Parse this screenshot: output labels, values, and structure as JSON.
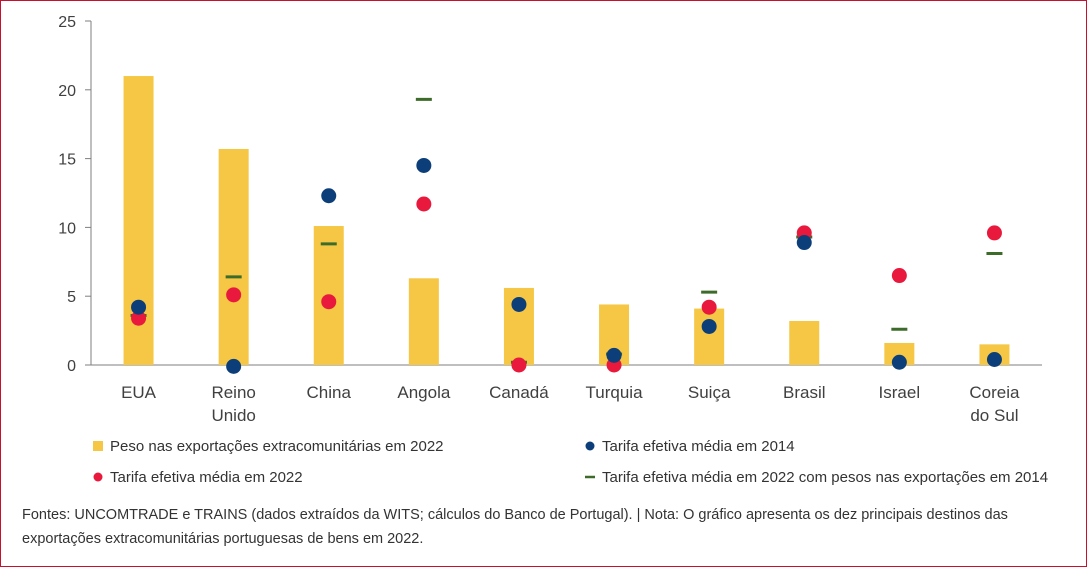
{
  "chart_data": {
    "type": "bar",
    "title": "",
    "xlabel": "",
    "ylabel": "",
    "ylim": [
      0,
      25
    ],
    "yticks": [
      0,
      5,
      10,
      15,
      20,
      25
    ],
    "grid": false,
    "legend_placement": "bottom",
    "categories": [
      [
        "EUA"
      ],
      [
        "Reino",
        "Unido"
      ],
      [
        "China"
      ],
      [
        "Angola"
      ],
      [
        "Canadá"
      ],
      [
        "Turquia"
      ],
      [
        "Suiça"
      ],
      [
        "Brasil"
      ],
      [
        "Israel"
      ],
      [
        "Coreia",
        "do Sul"
      ]
    ],
    "series": [
      {
        "name": "Peso nas exportações extracomunitárias em 2022",
        "kind": "bar",
        "color": "#f5c744",
        "values": [
          21.0,
          15.7,
          10.1,
          6.3,
          5.6,
          4.4,
          4.1,
          3.2,
          1.6,
          1.5
        ]
      },
      {
        "name": "Tarifa efetiva média em 2014",
        "kind": "dot",
        "color": "#0c3f7a",
        "values": [
          4.2,
          -0.1,
          12.3,
          14.5,
          4.4,
          0.7,
          2.8,
          8.9,
          0.2,
          0.4
        ]
      },
      {
        "name": "Tarifa efetiva média em 2022",
        "kind": "dot",
        "color": "#e8193c",
        "values": [
          3.4,
          5.1,
          4.6,
          11.7,
          0.0,
          0.0,
          4.2,
          9.6,
          6.5,
          9.6
        ]
      },
      {
        "name": "Tarifa efetiva média em 2022 com pesos nas exportações em 2014",
        "kind": "dash",
        "color": "#3d6b2a",
        "values": [
          3.6,
          6.4,
          8.8,
          19.3,
          0.2,
          0.8,
          5.3,
          9.3,
          2.6,
          8.1
        ]
      }
    ]
  },
  "footnote": "Fontes: UNCOMTRADE e TRAINS (dados extraídos da WITS; cálculos do Banco de Portugal).  |  Nota: O gráfico apresenta os dez principais destinos das exportações extracomunitárias portuguesas de bens em 2022."
}
